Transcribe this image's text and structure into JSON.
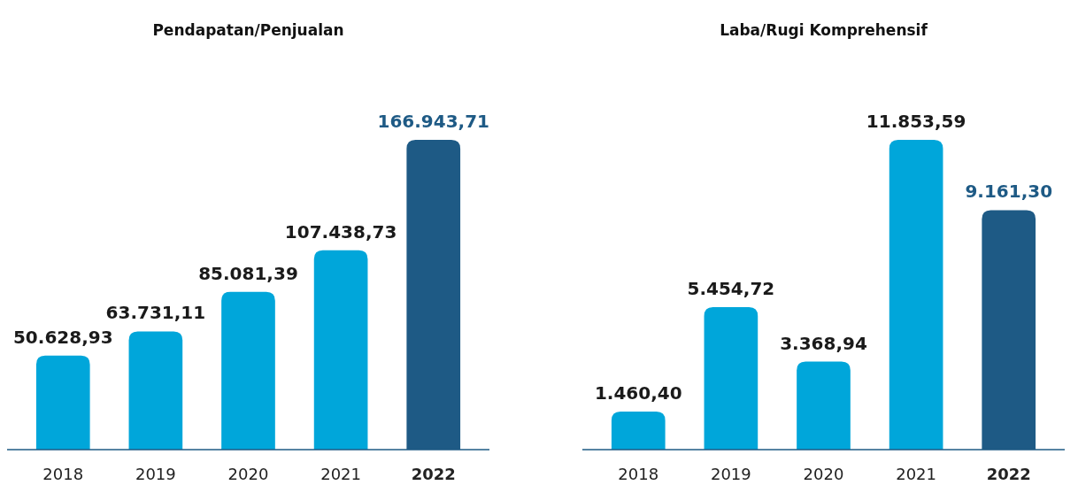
{
  "chart_data": [
    {
      "type": "bar",
      "title": "Pendapatan/Penjualan",
      "categories": [
        "2018",
        "2019",
        "2020",
        "2021",
        "2022"
      ],
      "values": [
        50628.93,
        63731.11,
        85081.39,
        107438.73,
        166943.71
      ],
      "value_labels": [
        "50.628,93",
        "63.731,11",
        "85.081,39",
        "107.438,73",
        "166.943,71"
      ],
      "colors": [
        "#00a6da",
        "#00a6da",
        "#00a6da",
        "#00a6da",
        "#1e5a85"
      ]
    },
    {
      "type": "bar",
      "title": "Laba/Rugi Komprehensif",
      "categories": [
        "2018",
        "2019",
        "2020",
        "2021",
        "2022"
      ],
      "values": [
        1460.4,
        5454.72,
        3368.94,
        11853.59,
        9161.3
      ],
      "value_labels": [
        "1.460,40",
        "5.454,72",
        "3.368,94",
        "11.853,59",
        "9.161,30"
      ],
      "colors": [
        "#00a6da",
        "#00a6da",
        "#00a6da",
        "#00a6da",
        "#1e5a85"
      ]
    }
  ]
}
